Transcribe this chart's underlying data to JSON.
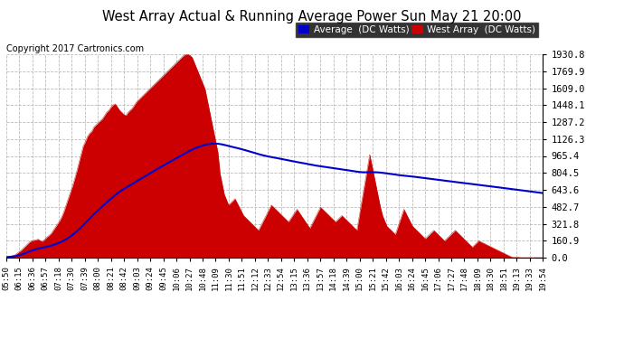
{
  "title": "West Array Actual & Running Average Power Sun May 21 20:00",
  "copyright": "Copyright 2017 Cartronics.com",
  "ylabel_right": [
    "0.0",
    "160.9",
    "321.8",
    "482.7",
    "643.6",
    "804.5",
    "965.4",
    "1126.3",
    "1287.2",
    "1448.1",
    "1609.0",
    "1769.9",
    "1930.8"
  ],
  "ymax": 1930.8,
  "bg_color": "#ffffff",
  "grid_color": "#bbbbbb",
  "west_array_color": "#cc0000",
  "average_color": "#0000cc",
  "legend_avg_bg": "#0000cc",
  "legend_west_bg": "#cc0000",
  "x_tick_labels": [
    "05:50",
    "06:15",
    "06:36",
    "06:57",
    "07:18",
    "07:30",
    "07:39",
    "08:00",
    "08:21",
    "08:42",
    "09:03",
    "09:24",
    "09:45",
    "10:06",
    "10:27",
    "10:48",
    "11:09",
    "11:30",
    "11:51",
    "12:12",
    "12:33",
    "12:54",
    "13:15",
    "13:36",
    "13:57",
    "14:18",
    "14:39",
    "15:00",
    "15:21",
    "15:42",
    "16:03",
    "16:24",
    "16:45",
    "17:06",
    "17:27",
    "17:48",
    "18:09",
    "18:30",
    "18:51",
    "19:13",
    "19:33",
    "19:54"
  ],
  "west_data": [
    5,
    8,
    12,
    18,
    25,
    40,
    55,
    70,
    90,
    110,
    130,
    150,
    160,
    165,
    170,
    175,
    160,
    155,
    175,
    195,
    210,
    230,
    260,
    290,
    320,
    350,
    390,
    440,
    500,
    560,
    620,
    680,
    750,
    820,
    900,
    980,
    1060,
    1100,
    1150,
    1180,
    1200,
    1240,
    1260,
    1280,
    1300,
    1320,
    1350,
    1380,
    1400,
    1430,
    1450,
    1460,
    1430,
    1400,
    1380,
    1360,
    1350,
    1380,
    1400,
    1420,
    1450,
    1480,
    1500,
    1520,
    1540,
    1560,
    1580,
    1600,
    1620,
    1640,
    1660,
    1680,
    1700,
    1720,
    1740,
    1760,
    1780,
    1800,
    1820,
    1840,
    1860,
    1880,
    1900,
    1920,
    1930,
    1930,
    1920,
    1900,
    1850,
    1800,
    1750,
    1700,
    1650,
    1600,
    1500,
    1400,
    1300,
    1200,
    1100,
    1000,
    800,
    700,
    600,
    550,
    500,
    520,
    540,
    560,
    520,
    480,
    440,
    400,
    380,
    360,
    340,
    320,
    300,
    280,
    260,
    300,
    340,
    380,
    420,
    460,
    500,
    480,
    460,
    440,
    420,
    400,
    380,
    360,
    340,
    370,
    400,
    430,
    460,
    430,
    400,
    370,
    340,
    310,
    280,
    320,
    360,
    400,
    440,
    480,
    460,
    440,
    420,
    400,
    380,
    360,
    340,
    360,
    380,
    400,
    380,
    360,
    340,
    320,
    300,
    280,
    260,
    380,
    500,
    620,
    740,
    860,
    980,
    880,
    780,
    680,
    580,
    480,
    400,
    350,
    300,
    280,
    260,
    240,
    220,
    280,
    340,
    400,
    460,
    420,
    380,
    340,
    300,
    280,
    260,
    240,
    220,
    200,
    180,
    200,
    220,
    240,
    260,
    240,
    220,
    200,
    180,
    160,
    180,
    200,
    220,
    240,
    260,
    240,
    220,
    200,
    180,
    160,
    140,
    120,
    100,
    120,
    140,
    160,
    150,
    140,
    130,
    120,
    110,
    100,
    90,
    80,
    70,
    60,
    50,
    40,
    30,
    20,
    10,
    5,
    3,
    2,
    1,
    0,
    0,
    0,
    0,
    0,
    0,
    0,
    0,
    0,
    0,
    0
  ]
}
